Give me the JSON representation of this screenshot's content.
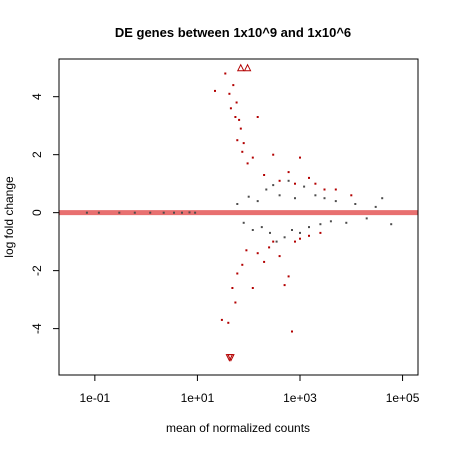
{
  "chart_data": {
    "type": "scatter",
    "title": "DE genes between 1x10^9 and 1x10^6",
    "xlabel": "mean of normalized counts",
    "ylabel": "log fold change",
    "x_scale": "log10",
    "xlim": [
      0.02,
      200000
    ],
    "ylim": [
      -5.6,
      5.3
    ],
    "x_ticks": [
      0.1,
      10,
      1000,
      100000
    ],
    "x_tick_labels": [
      "1e-01",
      "1e+01",
      "1e+03",
      "1e+05"
    ],
    "y_ticks": [
      -4,
      -2,
      0,
      2,
      4
    ],
    "y_tick_labels": [
      "-4",
      "-2",
      "0",
      "2",
      "4"
    ],
    "reference_line": {
      "y": 0,
      "color": "#e87070"
    },
    "grid": false,
    "legend": "none",
    "colors": {
      "significant": "#b30000",
      "not_significant": "#4d4d4d",
      "trend": "#c0392b"
    },
    "series": [
      {
        "color": "#4d4d4d",
        "points": [
          [
            0.07,
            0.0
          ],
          [
            0.12,
            0.0
          ],
          [
            0.3,
            0.0
          ],
          [
            0.6,
            0.0
          ],
          [
            1.2,
            0.0
          ],
          [
            2.2,
            0.0
          ],
          [
            3.5,
            0.0
          ],
          [
            5,
            0.0
          ],
          [
            7,
            0.01
          ],
          [
            9,
            0.0
          ],
          [
            60,
            0.3
          ],
          [
            80,
            -0.35
          ],
          [
            100,
            0.55
          ],
          [
            120,
            -0.6
          ],
          [
            150,
            0.4
          ],
          [
            180,
            -0.5
          ],
          [
            220,
            0.8
          ],
          [
            260,
            -0.7
          ],
          [
            300,
            0.95
          ],
          [
            350,
            -1.0
          ],
          [
            400,
            0.6
          ],
          [
            500,
            -0.85
          ],
          [
            600,
            1.1
          ],
          [
            700,
            -0.6
          ],
          [
            800,
            0.5
          ],
          [
            1000,
            -0.7
          ],
          [
            1200,
            0.9
          ],
          [
            1500,
            -0.5
          ],
          [
            2000,
            0.6
          ],
          [
            2500,
            -0.4
          ],
          [
            3000,
            0.5
          ],
          [
            4000,
            -0.3
          ],
          [
            5000,
            0.4
          ],
          [
            8000,
            -0.35
          ],
          [
            12000,
            0.3
          ],
          [
            20000,
            -0.2
          ],
          [
            30000,
            0.2
          ],
          [
            40000,
            0.5
          ],
          [
            60000,
            -0.4
          ]
        ]
      },
      {
        "color": "#b30000",
        "points": [
          [
            22,
            4.2
          ],
          [
            35,
            4.8
          ],
          [
            42,
            4.1
          ],
          [
            45,
            3.6
          ],
          [
            50,
            4.4
          ],
          [
            55,
            3.3
          ],
          [
            58,
            3.8
          ],
          [
            60,
            2.5
          ],
          [
            65,
            3.2
          ],
          [
            70,
            2.9
          ],
          [
            75,
            2.1
          ],
          [
            80,
            2.4
          ],
          [
            95,
            1.7
          ],
          [
            120,
            1.9
          ],
          [
            150,
            3.3
          ],
          [
            200,
            1.3
          ],
          [
            300,
            2.0
          ],
          [
            400,
            1.1
          ],
          [
            600,
            1.4
          ],
          [
            800,
            1.0
          ],
          [
            1000,
            1.9
          ],
          [
            1500,
            1.2
          ],
          [
            2000,
            1.0
          ],
          [
            3000,
            0.8
          ],
          [
            5000,
            0.8
          ],
          [
            10000,
            0.6
          ],
          [
            30,
            -3.7
          ],
          [
            40,
            -3.8
          ],
          [
            48,
            -2.6
          ],
          [
            55,
            -3.1
          ],
          [
            60,
            -2.1
          ],
          [
            75,
            -1.8
          ],
          [
            90,
            -1.3
          ],
          [
            120,
            -2.6
          ],
          [
            150,
            -1.4
          ],
          [
            200,
            -1.7
          ],
          [
            250,
            -1.2
          ],
          [
            300,
            -1.0
          ],
          [
            400,
            -1.5
          ],
          [
            500,
            -2.5
          ],
          [
            600,
            -2.2
          ],
          [
            700,
            -4.1
          ],
          [
            800,
            -1.0
          ],
          [
            1000,
            -0.9
          ],
          [
            1500,
            -0.8
          ],
          [
            2500,
            -0.7
          ]
        ]
      }
    ],
    "outliers": [
      {
        "x": 70,
        "y": 5.0,
        "marker": "triangle-up",
        "color": "#b30000"
      },
      {
        "x": 95,
        "y": 5.0,
        "marker": "triangle-up",
        "color": "#b30000"
      },
      {
        "x": 42,
        "y": -5.0,
        "marker": "triangle-down",
        "color": "#b30000"
      },
      {
        "x": 45,
        "y": -5.0,
        "marker": "triangle-down",
        "color": "#b30000"
      }
    ]
  }
}
